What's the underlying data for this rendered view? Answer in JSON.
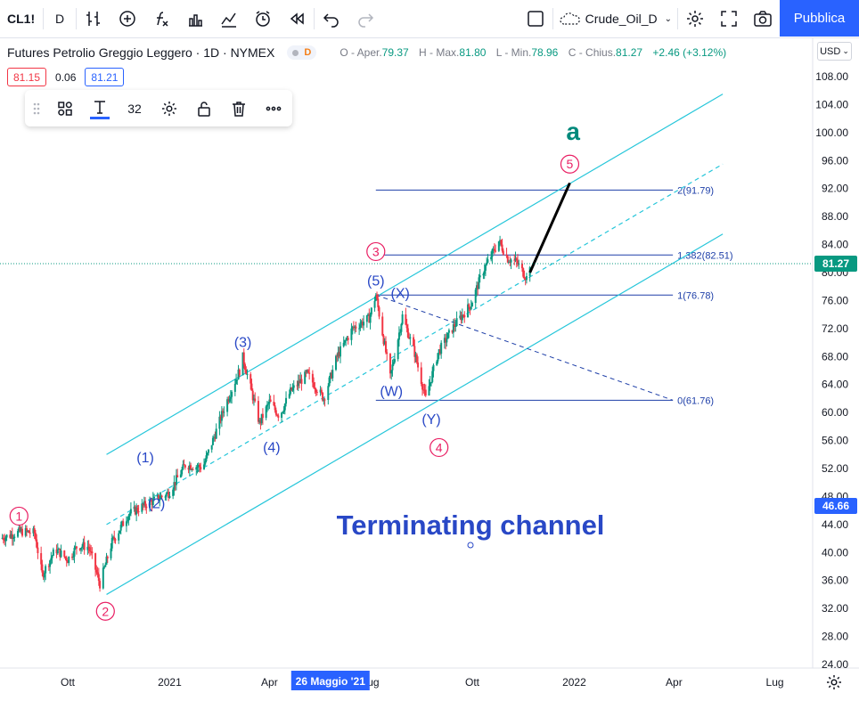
{
  "toolbar": {
    "symbol": "CL1!",
    "interval": "D",
    "layout_name": "Crude_Oil_D",
    "publish_label": "Pubblica",
    "icons": [
      "bar-type-icon",
      "indicator-add-icon",
      "function-icon",
      "templates-icon",
      "alert-icon",
      "replay-icon",
      "undo-icon",
      "redo-icon",
      "layout-icon",
      "cloud-icon",
      "settings-icon",
      "fullscreen-icon",
      "camera-icon"
    ]
  },
  "legend": {
    "title": "Futures Petrolio Greggio Leggero · 1D · NYMEX",
    "badge": "D",
    "ohlc": {
      "open_label": "O - Aper.",
      "open": "79.37",
      "high_label": "H - Max.",
      "high": "81.80",
      "low_label": "L - Min.",
      "low": "78.96",
      "close_label": "C - Chius.",
      "close": "81.27",
      "change": "+2.46 (+3.12%)"
    }
  },
  "quote": {
    "bid": "81.15",
    "spread": "0.06",
    "ask": "81.21"
  },
  "drawing_toolbar": {
    "font_size": "32"
  },
  "price_scale": {
    "currency": "USD"
  },
  "chart_data": {
    "type": "candlestick",
    "y_ticks": [
      "24.00",
      "28.00",
      "32.00",
      "36.00",
      "40.00",
      "44.00",
      "48.00",
      "52.00",
      "56.00",
      "60.00",
      "64.00",
      "68.00",
      "72.00",
      "76.00",
      "80.00",
      "84.00",
      "88.00",
      "92.00",
      "96.00",
      "100.00",
      "104.00",
      "108.00"
    ],
    "ylim": [
      24,
      108
    ],
    "x_ticks": [
      {
        "label": "Ott",
        "date": "2020-10-01"
      },
      {
        "label": "2021",
        "date": "2021-01-01"
      },
      {
        "label": "Apr",
        "date": "2021-04-01"
      },
      {
        "label": "Lug",
        "date": "2021-07-01"
      },
      {
        "label": "Ott",
        "date": "2021-10-01"
      },
      {
        "label": "2022",
        "date": "2022-01-01"
      },
      {
        "label": "Apr",
        "date": "2022-04-01"
      },
      {
        "label": "Lug",
        "date": "2022-07-01"
      }
    ],
    "crosshair_date_label": "26 Maggio '21",
    "last_price": "81.27",
    "crosshair_price": "46.66",
    "price_path": [
      [
        "2020-08-01",
        42.0
      ],
      [
        "2020-08-20",
        43.0
      ],
      [
        "2020-09-01",
        42.8
      ],
      [
        "2020-09-08",
        36.8
      ],
      [
        "2020-09-20",
        40.5
      ],
      [
        "2020-10-01",
        39.0
      ],
      [
        "2020-10-10",
        41.0
      ],
      [
        "2020-10-20",
        40.8
      ],
      [
        "2020-10-30",
        35.5
      ],
      [
        "2020-11-10",
        41.5
      ],
      [
        "2020-11-25",
        45.5
      ],
      [
        "2020-12-10",
        46.8
      ],
      [
        "2020-12-31",
        48.5
      ],
      [
        "2021-01-15",
        52.5
      ],
      [
        "2021-01-31",
        52.2
      ],
      [
        "2021-02-10",
        56.5
      ],
      [
        "2021-02-20",
        61.0
      ],
      [
        "2021-03-05",
        66.0
      ],
      [
        "2021-03-08",
        67.9
      ],
      [
        "2021-03-23",
        58.5
      ],
      [
        "2021-04-01",
        61.5
      ],
      [
        "2021-04-10",
        59.5
      ],
      [
        "2021-04-20",
        63.0
      ],
      [
        "2021-05-05",
        65.5
      ],
      [
        "2021-05-20",
        62.0
      ],
      [
        "2021-06-01",
        68.0
      ],
      [
        "2021-06-15",
        72.0
      ],
      [
        "2021-06-30",
        73.5
      ],
      [
        "2021-07-06",
        76.8
      ],
      [
        "2021-07-19",
        65.0
      ],
      [
        "2021-07-30",
        73.8
      ],
      [
        "2021-08-10",
        68.5
      ],
      [
        "2021-08-20",
        62.0
      ],
      [
        "2021-08-31",
        68.5
      ],
      [
        "2021-09-15",
        72.5
      ],
      [
        "2021-09-30",
        75.5
      ],
      [
        "2021-10-10",
        80.0
      ],
      [
        "2021-10-25",
        84.5
      ],
      [
        "2021-11-02",
        82.0
      ],
      [
        "2021-11-10",
        81.5
      ],
      [
        "2021-11-20",
        79.0
      ],
      [
        "2021-11-22",
        81.27
      ]
    ],
    "fibonacci_levels": [
      {
        "ratio": "2",
        "price": 91.79,
        "label": "2(91.79)"
      },
      {
        "ratio": "1.382",
        "price": 82.51,
        "label": "1.382(82.51)"
      },
      {
        "ratio": "1",
        "price": 76.78,
        "label": "1(76.78)"
      },
      {
        "ratio": "0",
        "price": 61.76,
        "label": "0(61.76)"
      }
    ],
    "channel": {
      "upper": [
        [
          "2020-11-05",
          54.0
        ],
        [
          "2022-05-15",
          105.5
        ]
      ],
      "lower": [
        [
          "2020-11-05",
          34.0
        ],
        [
          "2022-05-15",
          85.5
        ]
      ],
      "median": [
        [
          "2020-11-05",
          44.0
        ],
        [
          "2022-05-15",
          95.5
        ]
      ]
    },
    "projection_line": [
      [
        "2021-11-22",
        80.0
      ],
      [
        "2021-12-28",
        92.8
      ]
    ],
    "x_diagonal": [
      [
        "2021-07-06",
        76.8
      ],
      [
        "2022-03-31",
        61.76
      ]
    ],
    "wave_labels": [
      {
        "text": "1",
        "date": "2020-08-18",
        "price": 45.2,
        "style": "circle"
      },
      {
        "text": "2",
        "date": "2020-11-04",
        "price": 31.6,
        "style": "circle"
      },
      {
        "text": "3",
        "date": "2021-07-06",
        "price": 83.0,
        "style": "circle"
      },
      {
        "text": "4",
        "date": "2021-09-01",
        "price": 55.0,
        "style": "circle"
      },
      {
        "text": "5",
        "date": "2021-12-28",
        "price": 95.5,
        "style": "circle"
      },
      {
        "text": "(1)",
        "date": "2020-12-10",
        "price": 53.5,
        "style": "paren"
      },
      {
        "text": "(2)",
        "date": "2020-12-20",
        "price": 47.0,
        "style": "paren"
      },
      {
        "text": "(3)",
        "date": "2021-03-08",
        "price": 70.0,
        "style": "paren"
      },
      {
        "text": "(4)",
        "date": "2021-04-03",
        "price": 55.0,
        "style": "paren"
      },
      {
        "text": "(5)",
        "date": "2021-07-06",
        "price": 78.8,
        "style": "paren"
      },
      {
        "text": "(X)",
        "date": "2021-07-28",
        "price": 77.0,
        "style": "paren"
      },
      {
        "text": "(W)",
        "date": "2021-07-20",
        "price": 63.0,
        "style": "paren"
      },
      {
        "text": "(Y)",
        "date": "2021-08-25",
        "price": 59.0,
        "style": "paren"
      },
      {
        "text": "a",
        "date": "2021-12-31",
        "price": 100.0,
        "style": "bold"
      }
    ],
    "annotation": "Terminating channel"
  }
}
